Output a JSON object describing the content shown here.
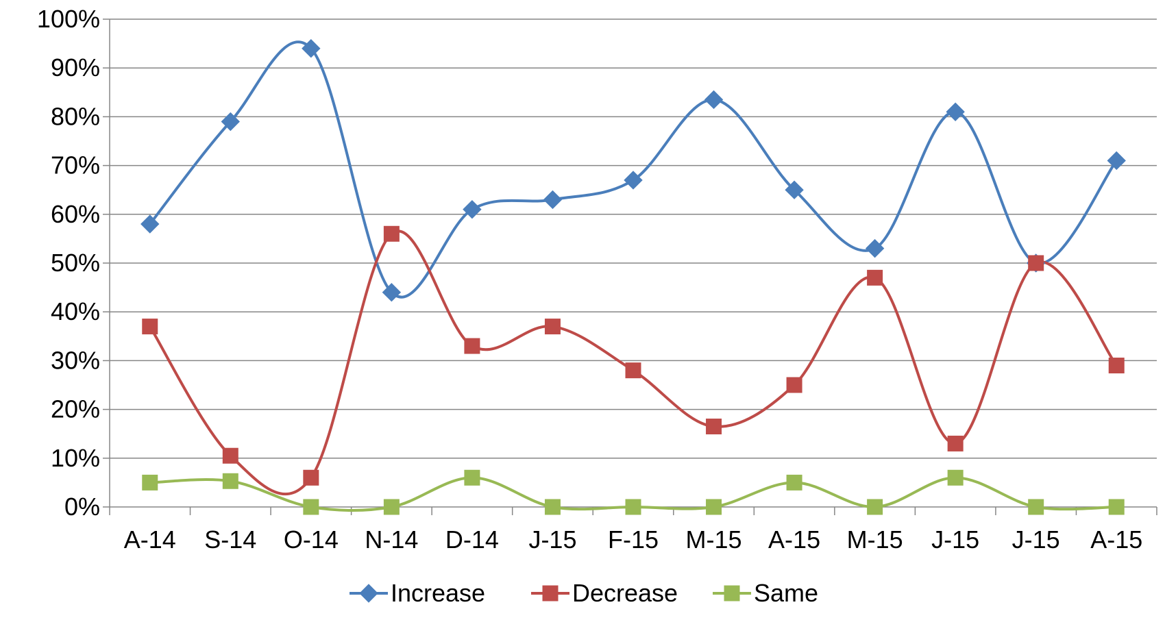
{
  "chart_data": {
    "type": "line",
    "smooth": true,
    "categories": [
      "A-14",
      "S-14",
      "O-14",
      "N-14",
      "D-14",
      "J-15",
      "F-15",
      "M-15",
      "A-15",
      "M-15",
      "J-15",
      "J-15",
      "A-15"
    ],
    "y_ticks": [
      "0%",
      "10%",
      "20%",
      "30%",
      "40%",
      "50%",
      "60%",
      "70%",
      "80%",
      "90%",
      "100%"
    ],
    "ylim": [
      0,
      100
    ],
    "y_unit": "%",
    "grid": "horizontal",
    "legend_position": "bottom",
    "series": [
      {
        "name": "Increase",
        "marker": "diamond",
        "color": "#4A7EBB",
        "values": [
          58,
          79,
          94,
          44,
          61,
          63,
          67,
          83.5,
          65,
          53,
          81,
          50,
          71
        ]
      },
      {
        "name": "Decrease",
        "marker": "square",
        "color": "#BE4B48",
        "values": [
          37,
          10.5,
          6,
          56,
          33,
          37,
          28,
          16.5,
          25,
          47,
          13,
          50,
          29
        ]
      },
      {
        "name": "Same",
        "marker": "square",
        "color": "#98B954",
        "values": [
          5,
          5.3,
          0,
          0,
          6,
          0,
          0,
          0,
          5,
          0,
          6,
          0,
          0
        ]
      }
    ]
  }
}
